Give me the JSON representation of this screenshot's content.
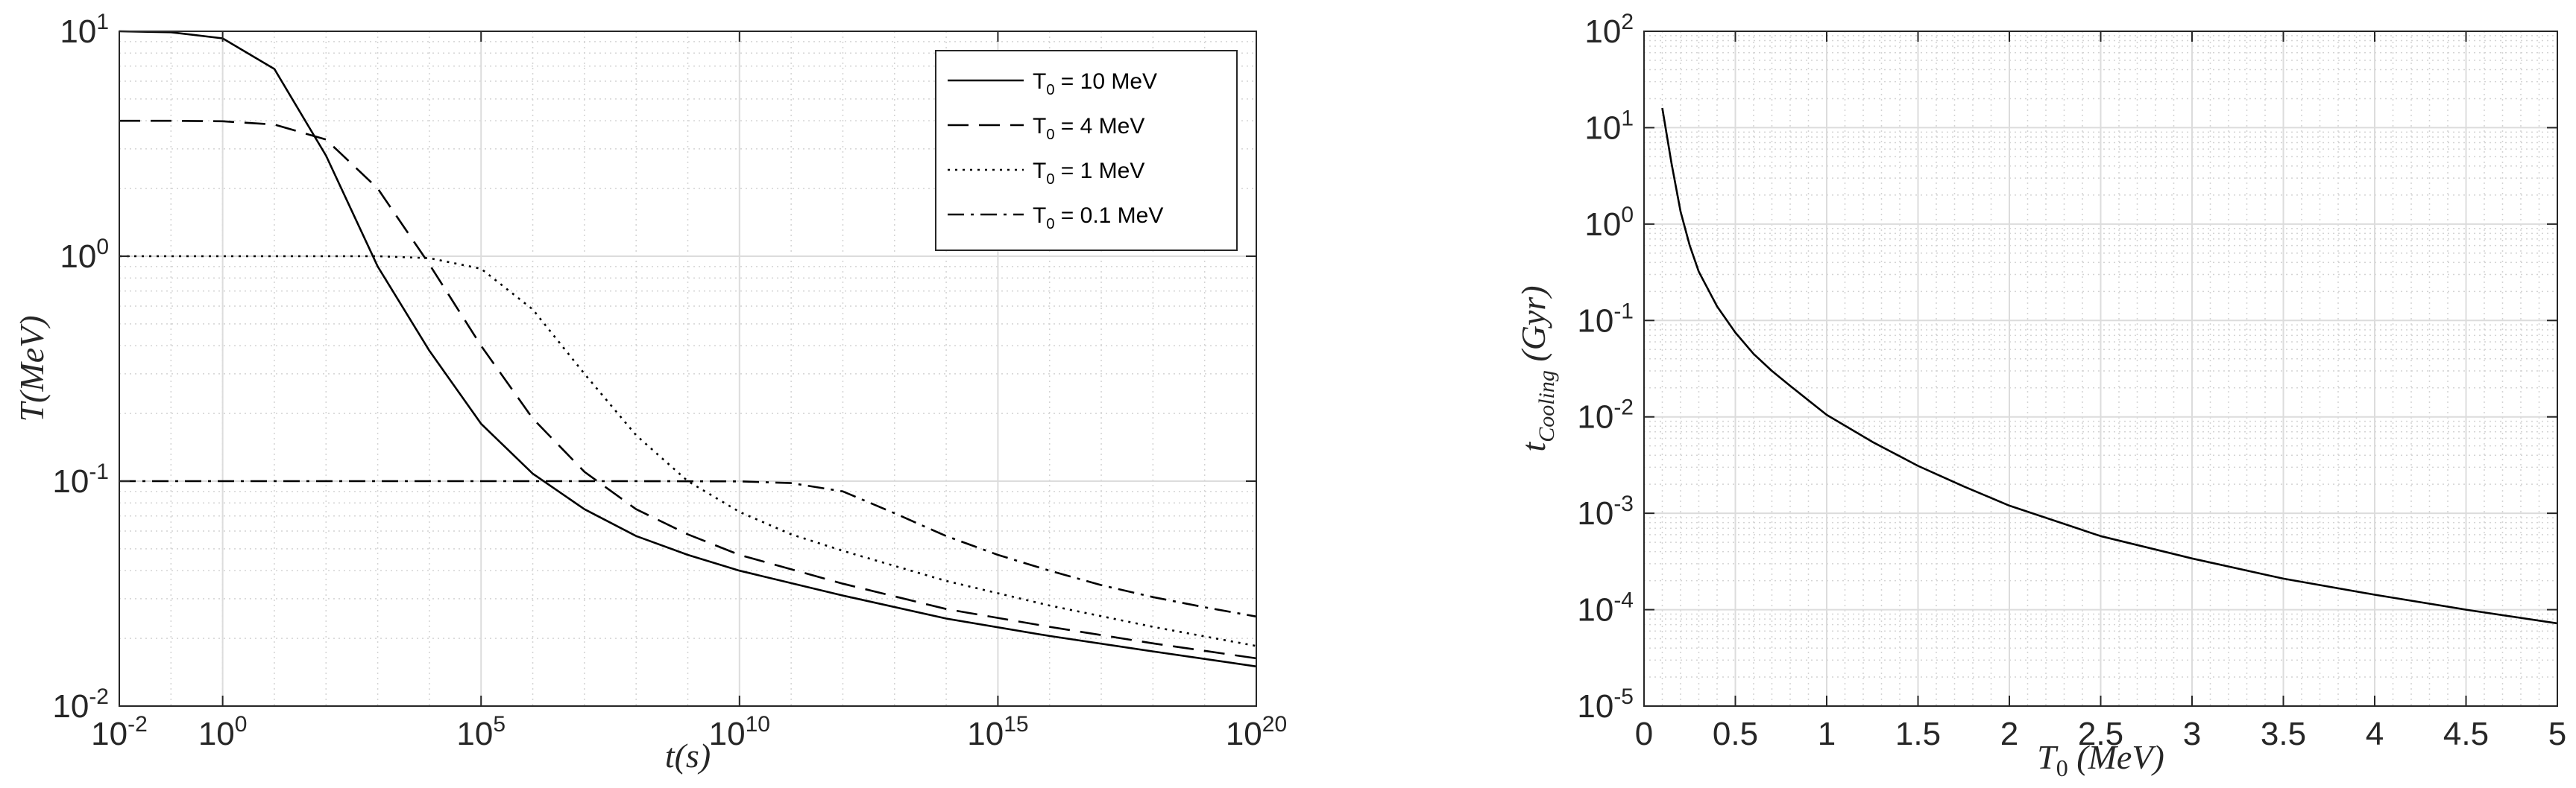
{
  "chart_data": [
    {
      "type": "line",
      "xscale": "log",
      "yscale": "log",
      "xlim": [
        0.01,
        1e+20
      ],
      "ylim": [
        0.01,
        10
      ],
      "xlabel": "t(s)",
      "ylabel": "T(MeV)",
      "grid": "on",
      "minor_grid": "on",
      "legend_location": "top-right",
      "x_ticks": [
        {
          "value": 0.01,
          "label": "10",
          "exp": "-2"
        },
        {
          "value": 1,
          "label": "10",
          "exp": "0"
        },
        {
          "value": 100000,
          "label": "10",
          "exp": "5"
        },
        {
          "value": 10000000000.0,
          "label": "10",
          "exp": "10"
        },
        {
          "value": 1000000000000000.0,
          "label": "10",
          "exp": "15"
        },
        {
          "value": 1e+20,
          "label": "10",
          "exp": "20"
        }
      ],
      "y_ticks": [
        {
          "value": 0.01,
          "label": "10",
          "exp": "-2"
        },
        {
          "value": 0.1,
          "label": "10",
          "exp": "-1"
        },
        {
          "value": 1,
          "label": "10",
          "exp": "0"
        },
        {
          "value": 10,
          "label": "10",
          "exp": "1"
        }
      ],
      "series": [
        {
          "name": "T0 = 10 MeV",
          "legend_main": "T",
          "legend_sub": "0",
          "legend_rest": " = 10 MeV",
          "style": "solid",
          "x": [
            0.01,
            0.1,
            1,
            10,
            100,
            1000,
            10000,
            100000,
            1000000,
            10000000.0,
            100000000.0,
            1000000000.0,
            10000000000.0,
            1000000000000.0,
            100000000000000.0,
            1e+16,
            1e+18,
            1e+20
          ],
          "y": [
            10,
            9.9,
            9.3,
            6.8,
            2.8,
            0.9,
            0.38,
            0.18,
            0.108,
            0.075,
            0.057,
            0.047,
            0.04,
            0.031,
            0.0245,
            0.0205,
            0.0175,
            0.015
          ]
        },
        {
          "name": "T0 = 4 MeV",
          "legend_main": "T",
          "legend_sub": "0",
          "legend_rest": " = 4 MeV",
          "style": "dashed",
          "x": [
            0.01,
            0.1,
            1,
            10,
            100,
            1000,
            10000,
            100000,
            1000000,
            10000000.0,
            100000000.0,
            1000000000.0,
            10000000000.0,
            1000000000000.0,
            100000000000000.0,
            1e+16,
            1e+18,
            1e+20
          ],
          "y": [
            4,
            4,
            3.98,
            3.85,
            3.3,
            2,
            0.92,
            0.4,
            0.19,
            0.11,
            0.075,
            0.058,
            0.047,
            0.035,
            0.027,
            0.0225,
            0.019,
            0.0163
          ]
        },
        {
          "name": "T0 = 1 MeV",
          "legend_main": "T",
          "legend_sub": "0",
          "legend_rest": " = 1 MeV",
          "style": "dotted",
          "x": [
            0.01,
            10,
            1000,
            10000,
            100000,
            1000000,
            10000000.0,
            100000000.0,
            1000000000.0,
            10000000000.0,
            100000000000.0,
            1000000000000.0,
            100000000000000.0,
            1e+16,
            1e+18,
            1e+20
          ],
          "y": [
            1,
            1,
            1,
            0.98,
            0.88,
            0.58,
            0.3,
            0.16,
            0.1,
            0.073,
            0.058,
            0.049,
            0.036,
            0.028,
            0.0225,
            0.0185
          ]
        },
        {
          "name": "T0 = 0.1 MeV",
          "legend_main": "T",
          "legend_sub": "0",
          "legend_rest": " = 0.1 MeV",
          "style": "dashdot",
          "x": [
            0.01,
            100000,
            100000000.0,
            10000000000.0,
            100000000000.0,
            1000000000000.0,
            10000000000000.0,
            100000000000000.0,
            1000000000000000.0,
            1e+16,
            1e+17,
            1e+18,
            1e+19,
            1e+20
          ],
          "y": [
            0.1,
            0.1,
            0.1,
            0.0998,
            0.098,
            0.09,
            0.072,
            0.057,
            0.047,
            0.04,
            0.0345,
            0.0305,
            0.0275,
            0.025
          ]
        }
      ]
    },
    {
      "type": "line",
      "xscale": "linear",
      "yscale": "log",
      "xlim": [
        0,
        5
      ],
      "ylim": [
        1e-05,
        100
      ],
      "xlabel_main": "T",
      "xlabel_sub": "0",
      "xlabel_rest": " (MeV)",
      "ylabel_main": "t",
      "ylabel_sub": "Cooling",
      "ylabel_rest": " (Gyr)",
      "grid": "on",
      "minor_grid": "on",
      "x_ticks": [
        {
          "value": 0,
          "label": "0"
        },
        {
          "value": 0.5,
          "label": "0.5"
        },
        {
          "value": 1,
          "label": "1"
        },
        {
          "value": 1.5,
          "label": "1.5"
        },
        {
          "value": 2,
          "label": "2"
        },
        {
          "value": 2.5,
          "label": "2.5"
        },
        {
          "value": 3,
          "label": "3"
        },
        {
          "value": 3.5,
          "label": "3.5"
        },
        {
          "value": 4,
          "label": "4"
        },
        {
          "value": 4.5,
          "label": "4.5"
        },
        {
          "value": 5,
          "label": "5"
        }
      ],
      "y_ticks": [
        {
          "value": 1e-05,
          "label": "10",
          "exp": "-5"
        },
        {
          "value": 0.0001,
          "label": "10",
          "exp": "-4"
        },
        {
          "value": 0.001,
          "label": "10",
          "exp": "-3"
        },
        {
          "value": 0.01,
          "label": "10",
          "exp": "-2"
        },
        {
          "value": 0.1,
          "label": "10",
          "exp": "-1"
        },
        {
          "value": 1,
          "label": "10",
          "exp": "0"
        },
        {
          "value": 10,
          "label": "10",
          "exp": "1"
        },
        {
          "value": 100,
          "label": "10",
          "exp": "2"
        }
      ],
      "series": [
        {
          "style": "solid",
          "x": [
            0.1,
            0.15,
            0.2,
            0.25,
            0.3,
            0.4,
            0.5,
            0.6,
            0.7,
            0.8,
            1,
            1.25,
            1.5,
            1.75,
            2,
            2.5,
            3,
            3.5,
            4,
            4.5,
            5
          ],
          "y": [
            16,
            4.3,
            1.35,
            0.6,
            0.32,
            0.14,
            0.075,
            0.045,
            0.03,
            0.021,
            0.0105,
            0.0055,
            0.0031,
            0.0019,
            0.0012,
            0.00058,
            0.00034,
            0.00021,
            0.000143,
            0.0001,
            7.2e-05
          ]
        }
      ]
    }
  ]
}
